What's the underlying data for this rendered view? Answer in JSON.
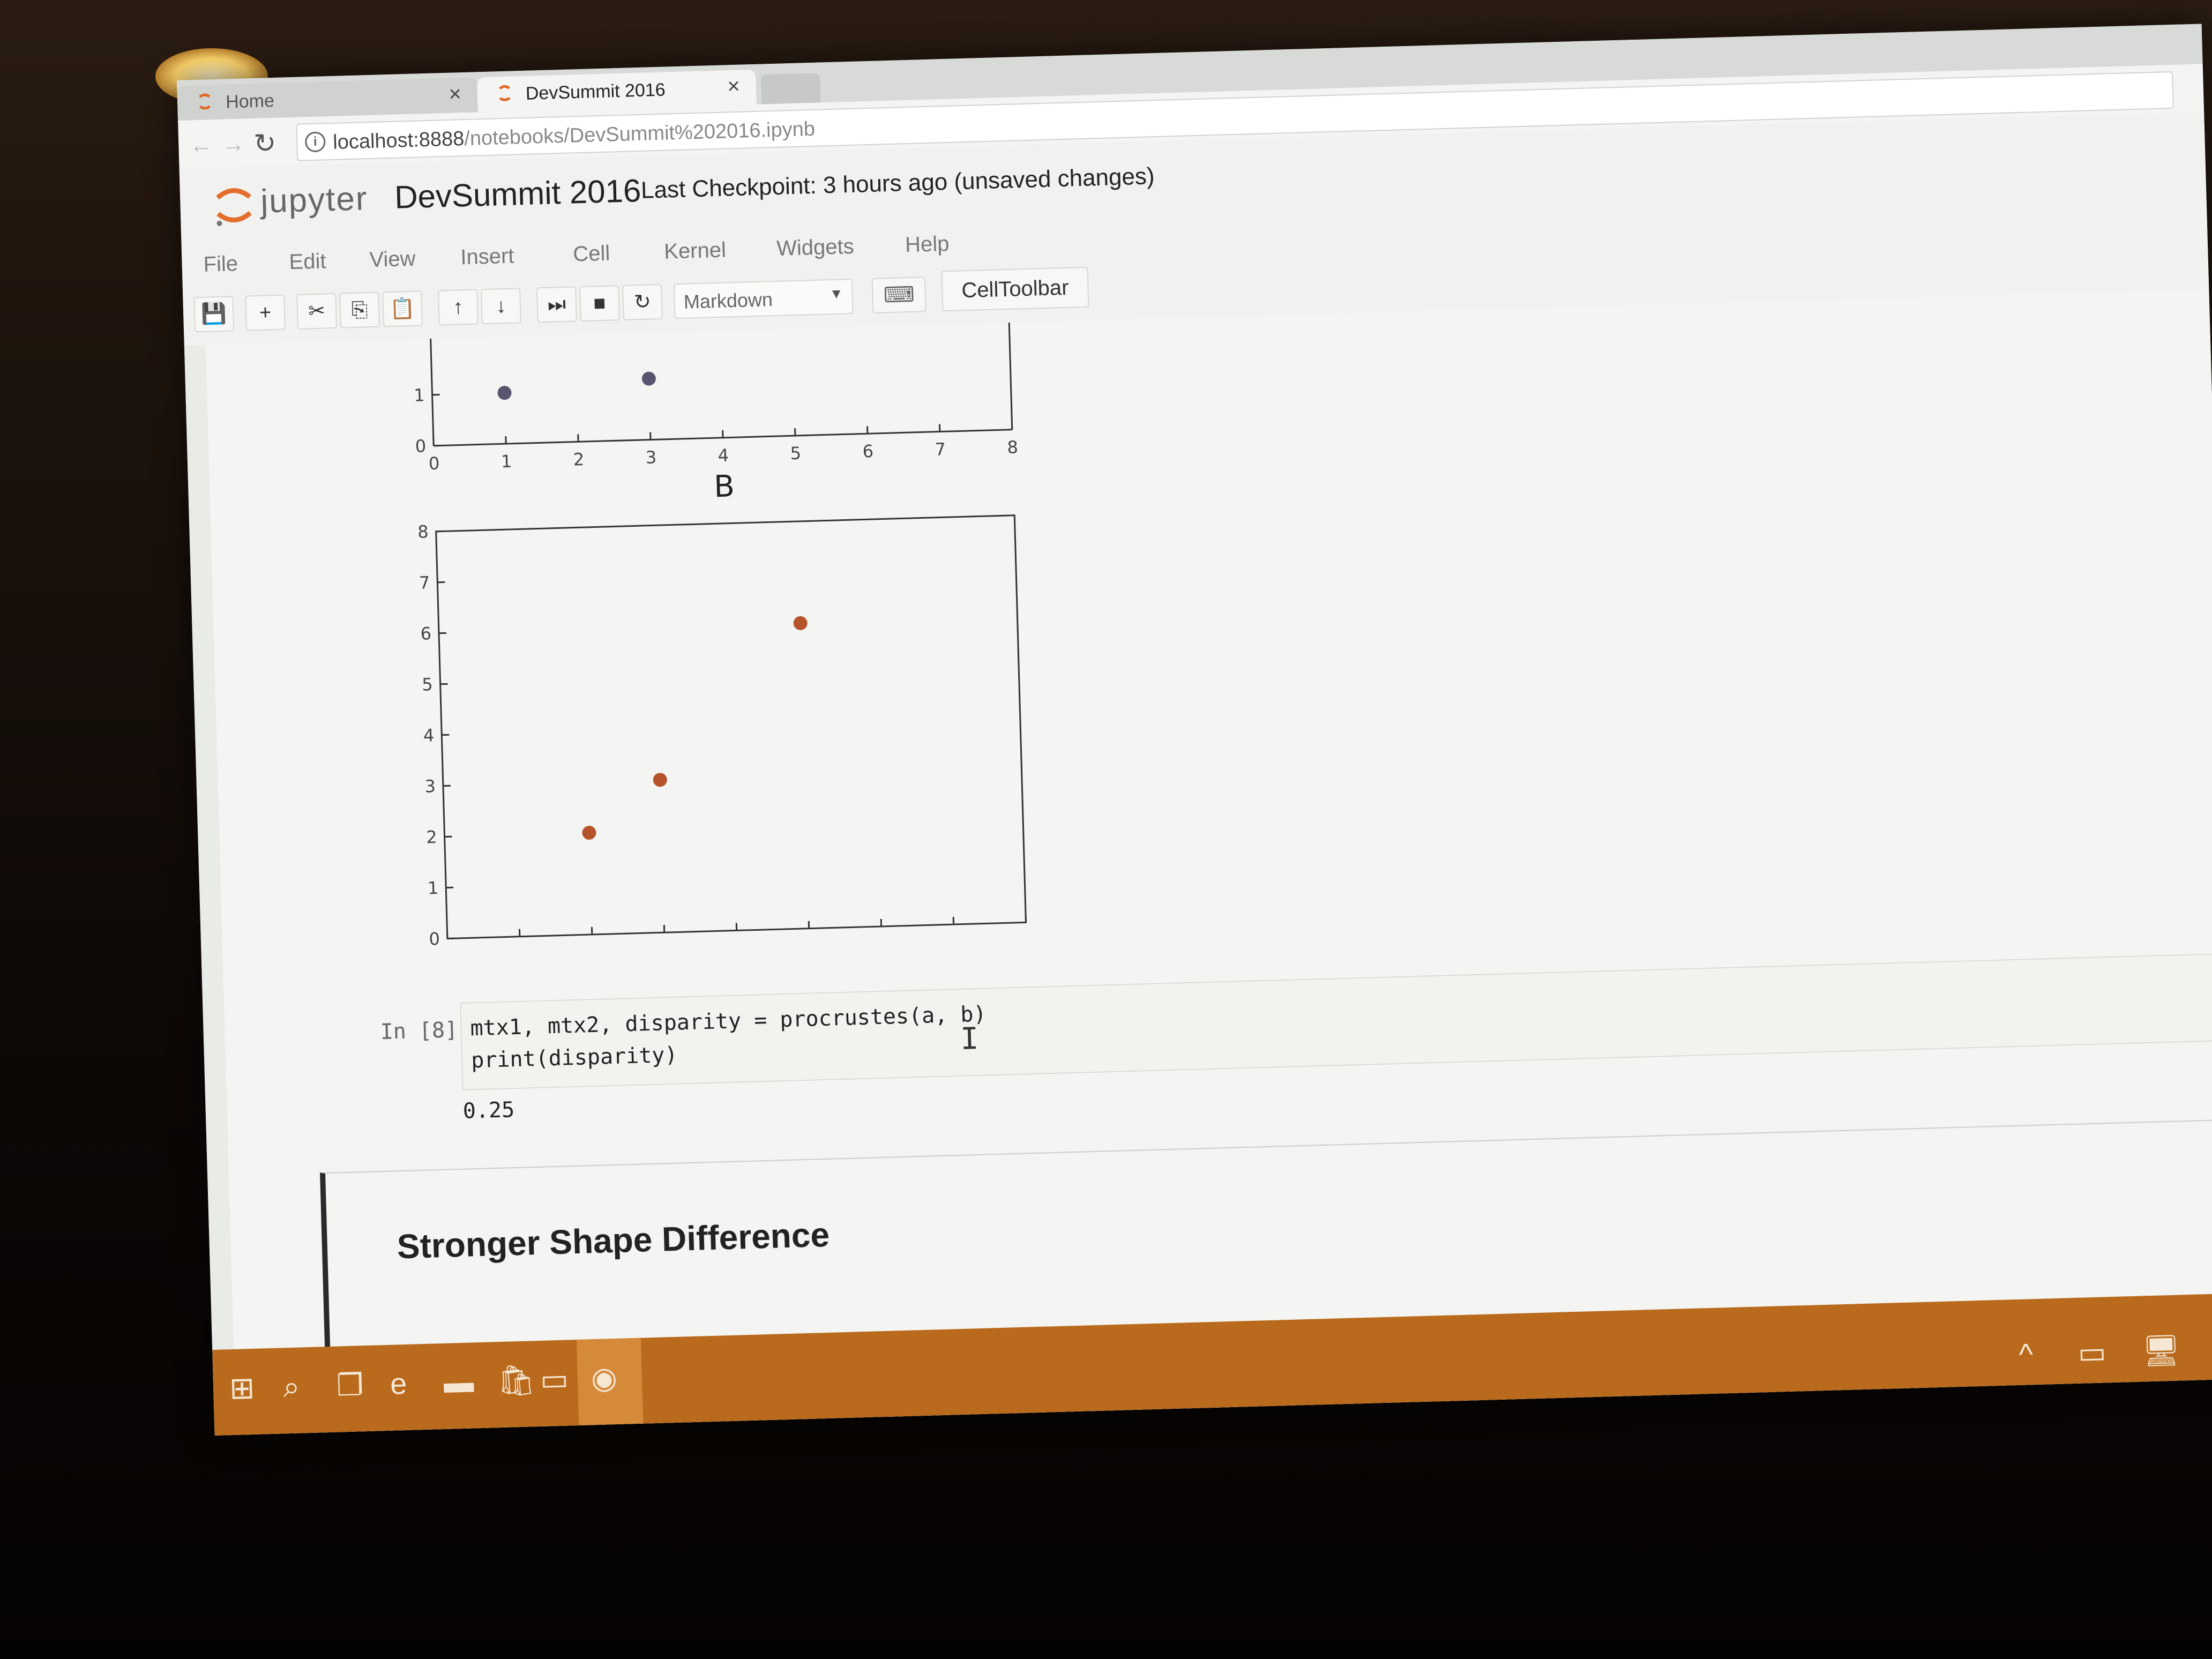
{
  "browser": {
    "tabs": [
      {
        "label": "Home",
        "close": "×"
      },
      {
        "label": "DevSummit 2016",
        "close": "×"
      }
    ],
    "url_main": "localhost:8888",
    "url_path": "/notebooks/DevSummit%202016.ipynb"
  },
  "jupyter": {
    "logo_text": "jupyter",
    "notebook_title": "DevSummit 2016",
    "checkpoint": "Last Checkpoint: 3 hours ago (unsaved changes)",
    "menu": [
      "File",
      "Edit",
      "View",
      "Insert",
      "Cell",
      "Kernel",
      "Widgets",
      "Help"
    ],
    "cell_type": "Markdown",
    "cell_toolbar_label": "CellToolbar"
  },
  "chart_data": [
    {
      "type": "scatter",
      "title": "",
      "partial": true,
      "x": [
        1,
        3
      ],
      "y": [
        1,
        1.2
      ],
      "xlim": [
        0,
        8
      ],
      "xticks": [
        "0",
        "1",
        "2",
        "3",
        "4",
        "5",
        "6",
        "7",
        "8"
      ],
      "yticks": [
        "0",
        "1"
      ],
      "color": "#5a5470"
    },
    {
      "type": "scatter",
      "title": "B",
      "x": [
        2,
        3,
        5
      ],
      "y": [
        2,
        3,
        6
      ],
      "xlim": [
        0,
        8
      ],
      "ylim": [
        0,
        8
      ],
      "xticks": [
        "0",
        "1",
        "2",
        "3",
        "4",
        "5",
        "6",
        "7",
        "8"
      ],
      "yticks": [
        "0",
        "1",
        "2",
        "3",
        "4",
        "5",
        "6",
        "7",
        "8"
      ],
      "color": "#b5532a"
    }
  ],
  "cell": {
    "prompt": "In [8]:",
    "code_line1": "mtx1, mtx2, disparity = procrustes(a, b)",
    "code_line2": "print(disparity)",
    "output": "0.25"
  },
  "markdown_heading": "Stronger Shape Difference",
  "taskbar": {
    "icons": [
      "windows-start-icon",
      "search-icon",
      "task-view-icon",
      "edge-icon",
      "file-explorer-icon",
      "store-icon",
      "terminal-icon",
      "chrome-icon"
    ],
    "tray_icons": [
      "chevron-up-icon",
      "battery-icon",
      "network-icon"
    ]
  }
}
